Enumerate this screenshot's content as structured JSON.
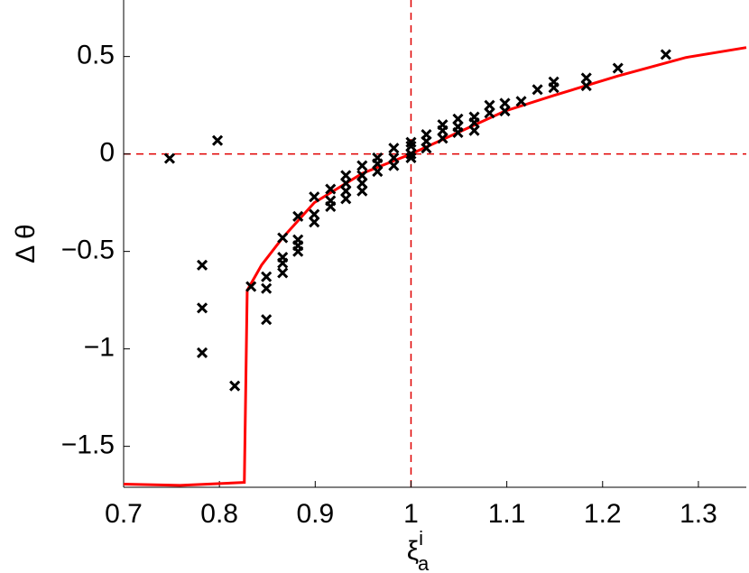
{
  "chart_data": {
    "type": "scatter_line",
    "xlabel": "ξ",
    "xlabel_sub": "a",
    "xlabel_sup": "i",
    "ylabel": "Δ θ",
    "xlim": [
      0.7,
      1.35
    ],
    "ylim": [
      -1.71,
      0.79
    ],
    "xticks": [
      0.7,
      0.8,
      0.9,
      1,
      1.1,
      1.2,
      1.3
    ],
    "yticks": [
      {
        "value": -1.5,
        "label": "−1.5"
      },
      {
        "value": -1,
        "label": "−1"
      },
      {
        "value": -0.5,
        "label": "−0.5"
      },
      0,
      0.5
    ],
    "vline": 1,
    "hline": 0,
    "ref_color": "#e00000",
    "scatter": {
      "color": "#000000",
      "x": [
        0.748,
        0.798,
        0.782,
        0.782,
        0.782,
        0.816,
        0.833,
        0.849,
        0.849,
        0.849,
        0.866,
        0.866,
        0.866,
        0.866,
        0.882,
        0.882,
        0.882,
        0.882,
        0.899,
        0.899,
        0.899,
        0.916,
        0.916,
        0.916,
        0.932,
        0.932,
        0.932,
        0.932,
        0.949,
        0.949,
        0.949,
        0.949,
        0.965,
        0.965,
        0.965,
        0.982,
        0.982,
        0.982,
        1.0,
        1.0,
        1.0,
        1.0,
        1.016,
        1.016,
        1.016,
        1.033,
        1.033,
        1.033,
        1.049,
        1.049,
        1.049,
        1.066,
        1.066,
        1.066,
        1.082,
        1.082,
        1.098,
        1.098,
        1.115,
        1.132,
        1.149,
        1.149,
        1.183,
        1.183,
        1.216,
        1.266
      ],
      "values": [
        -0.023,
        0.069,
        -0.57,
        -0.79,
        -1.02,
        -1.19,
        -0.68,
        -0.63,
        -0.69,
        -0.85,
        -0.43,
        -0.53,
        -0.56,
        -0.61,
        -0.32,
        -0.44,
        -0.47,
        -0.5,
        -0.22,
        -0.31,
        -0.35,
        -0.18,
        -0.24,
        -0.27,
        -0.11,
        -0.15,
        -0.19,
        -0.23,
        -0.06,
        -0.11,
        -0.15,
        -0.19,
        -0.02,
        -0.05,
        -0.09,
        0.03,
        -0.02,
        -0.06,
        0.06,
        0.04,
        0.0,
        -0.02,
        0.1,
        0.065,
        0.03,
        0.15,
        0.12,
        0.08,
        0.18,
        0.14,
        0.11,
        0.19,
        0.16,
        0.12,
        0.25,
        0.21,
        0.26,
        0.22,
        0.27,
        0.33,
        0.37,
        0.34,
        0.39,
        0.35,
        0.44,
        0.51
      ]
    },
    "line": {
      "color": "#ff0000",
      "x": [
        0.7,
        0.759,
        0.826,
        0.829,
        0.844,
        0.866,
        0.899,
        0.949,
        1.0,
        1.049,
        1.098,
        1.149,
        1.216,
        1.287,
        1.35
      ],
      "values": [
        -1.694,
        -1.7,
        -1.685,
        -0.7,
        -0.57,
        -0.43,
        -0.25,
        -0.1,
        0,
        0.11,
        0.22,
        0.3,
        0.4,
        0.495,
        0.546
      ]
    }
  }
}
